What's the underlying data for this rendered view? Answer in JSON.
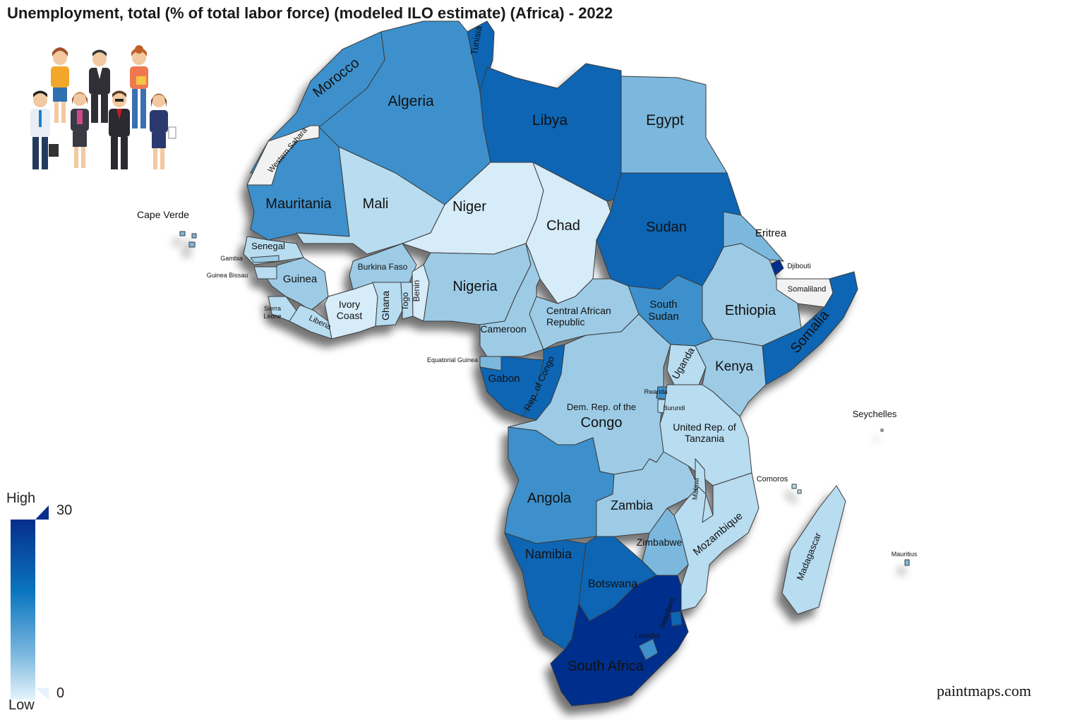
{
  "title": "Unemployment, total (% of total labor force) (modeled ILO estimate) (Africa) - 2022",
  "credit": "paintmaps.com",
  "legend": {
    "high_label": "High",
    "low_label": "Low",
    "max_value": "30",
    "min_value": "0"
  },
  "colors": {
    "very_light": "#d6ecf8",
    "light": "#b8dcf0",
    "light_mid": "#9dcbe6",
    "mid": "#7cb8de",
    "mid_dark": "#3d90cb",
    "dark": "#0e65b4",
    "darkest": "#062e8c",
    "no_data": "#f2f2f2"
  },
  "icons": {
    "people": "group-of-workers-icon"
  },
  "countries": [
    {
      "id": "morocco",
      "label": "Morocco",
      "shade": "mid_dark"
    },
    {
      "id": "algeria",
      "label": "Algeria",
      "shade": "mid_dark"
    },
    {
      "id": "tunisia",
      "label": "Tunisia",
      "shade": "dark"
    },
    {
      "id": "libya",
      "label": "Libya",
      "shade": "dark"
    },
    {
      "id": "egypt",
      "label": "Egypt",
      "shade": "mid"
    },
    {
      "id": "western-sahara",
      "label": "Western Sahara",
      "shade": "no_data"
    },
    {
      "id": "mauritania",
      "label": "Mauritania",
      "shade": "mid_dark"
    },
    {
      "id": "mali",
      "label": "Mali",
      "shade": "light"
    },
    {
      "id": "niger",
      "label": "Niger",
      "shade": "very_light"
    },
    {
      "id": "chad",
      "label": "Chad",
      "shade": "very_light"
    },
    {
      "id": "sudan",
      "label": "Sudan",
      "shade": "dark"
    },
    {
      "id": "eritrea",
      "label": "Eritrea",
      "shade": "mid"
    },
    {
      "id": "djibouti",
      "label": "Djibouti",
      "shade": "darkest"
    },
    {
      "id": "somaliland",
      "label": "Somaliland",
      "shade": "no_data"
    },
    {
      "id": "senegal",
      "label": "Senegal",
      "shade": "light"
    },
    {
      "id": "gambia",
      "label": "Gambia",
      "shade": "light_mid"
    },
    {
      "id": "guinea-bissau",
      "label": "Guinea Bissau",
      "shade": "light"
    },
    {
      "id": "guinea",
      "label": "Guinea",
      "shade": "light_mid"
    },
    {
      "id": "sierra-leone",
      "label": "Sierra Leone",
      "shade": "light"
    },
    {
      "id": "liberia",
      "label": "Liberia",
      "shade": "light"
    },
    {
      "id": "ivory-coast",
      "label": "Ivory Coast",
      "shade": "very_light"
    },
    {
      "id": "burkina-faso",
      "label": "Burkina Faso",
      "shade": "light_mid"
    },
    {
      "id": "ghana",
      "label": "Ghana",
      "shade": "light"
    },
    {
      "id": "togo",
      "label": "Togo",
      "shade": "light"
    },
    {
      "id": "benin",
      "label": "Benin",
      "shade": "very_light"
    },
    {
      "id": "nigeria",
      "label": "Nigeria",
      "shade": "light_mid"
    },
    {
      "id": "cameroon",
      "label": "Cameroon",
      "shade": "light_mid"
    },
    {
      "id": "central-african-republic",
      "label": "Central African Republic",
      "shade": "light_mid"
    },
    {
      "id": "south-sudan",
      "label": "South Sudan",
      "shade": "mid_dark"
    },
    {
      "id": "ethiopia",
      "label": "Ethiopia",
      "shade": "light_mid"
    },
    {
      "id": "somalia",
      "label": "Somalia",
      "shade": "dark"
    },
    {
      "id": "equatorial-guinea",
      "label": "Equatorial Guinea",
      "shade": "mid"
    },
    {
      "id": "gabon",
      "label": "Gabon",
      "shade": "dark"
    },
    {
      "id": "rep-of-congo",
      "label": "Rep. of Congo",
      "shade": "dark"
    },
    {
      "id": "dr-congo",
      "label": "Dem. Rep. of the Congo",
      "shade": "light_mid"
    },
    {
      "id": "uganda",
      "label": "Uganda",
      "shade": "light"
    },
    {
      "id": "kenya",
      "label": "Kenya",
      "shade": "light_mid"
    },
    {
      "id": "rwanda",
      "label": "Rwanda",
      "shade": "mid_dark"
    },
    {
      "id": "burundi",
      "label": "Burundi",
      "shade": "light"
    },
    {
      "id": "tanzania",
      "label": "United Rep. of Tanzania",
      "shade": "light"
    },
    {
      "id": "angola",
      "label": "Angola",
      "shade": "mid_dark"
    },
    {
      "id": "zambia",
      "label": "Zambia",
      "shade": "light_mid"
    },
    {
      "id": "malawi",
      "label": "Malawi",
      "shade": "light"
    },
    {
      "id": "mozambique",
      "label": "Mozambique",
      "shade": "light"
    },
    {
      "id": "zimbabwe",
      "label": "Zimbabwe",
      "shade": "mid"
    },
    {
      "id": "namibia",
      "label": "Namibia",
      "shade": "dark"
    },
    {
      "id": "botswana",
      "label": "Botswana",
      "shade": "dark"
    },
    {
      "id": "south-africa",
      "label": "South Africa",
      "shade": "darkest"
    },
    {
      "id": "swaziland",
      "label": "Swaziland",
      "shade": "dark"
    },
    {
      "id": "lesotho",
      "label": "Lesotho",
      "shade": "mid_dark"
    },
    {
      "id": "madagascar",
      "label": "Madagascar",
      "shade": "light"
    },
    {
      "id": "cape-verde",
      "label": "Cape Verde",
      "shade": "mid"
    },
    {
      "id": "comoros",
      "label": "Comoros",
      "shade": "light"
    },
    {
      "id": "mauritius",
      "label": "Mauritius",
      "shade": "mid"
    },
    {
      "id": "seychelles",
      "label": "Seychelles",
      "shade": "no_data"
    }
  ]
}
